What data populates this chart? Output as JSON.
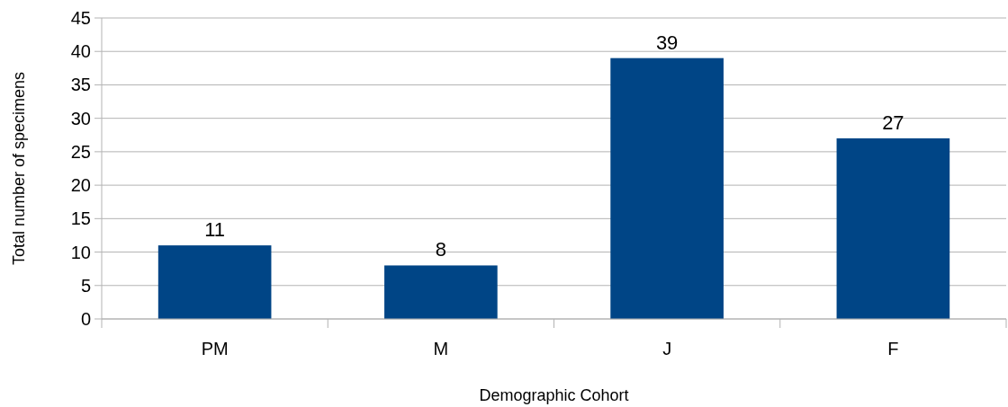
{
  "chart_data": {
    "type": "bar",
    "xlabel": "Demographic Cohort",
    "ylabel": "Total number of specimens",
    "categories": [
      "PM",
      "M",
      "J",
      "F"
    ],
    "values": [
      11,
      8,
      39,
      27
    ],
    "color": "#004586",
    "ylim": [
      0,
      45
    ],
    "yticks": [
      0,
      5,
      10,
      15,
      20,
      25,
      30,
      35,
      40,
      45
    ],
    "grid": "y",
    "data_labels": true
  }
}
